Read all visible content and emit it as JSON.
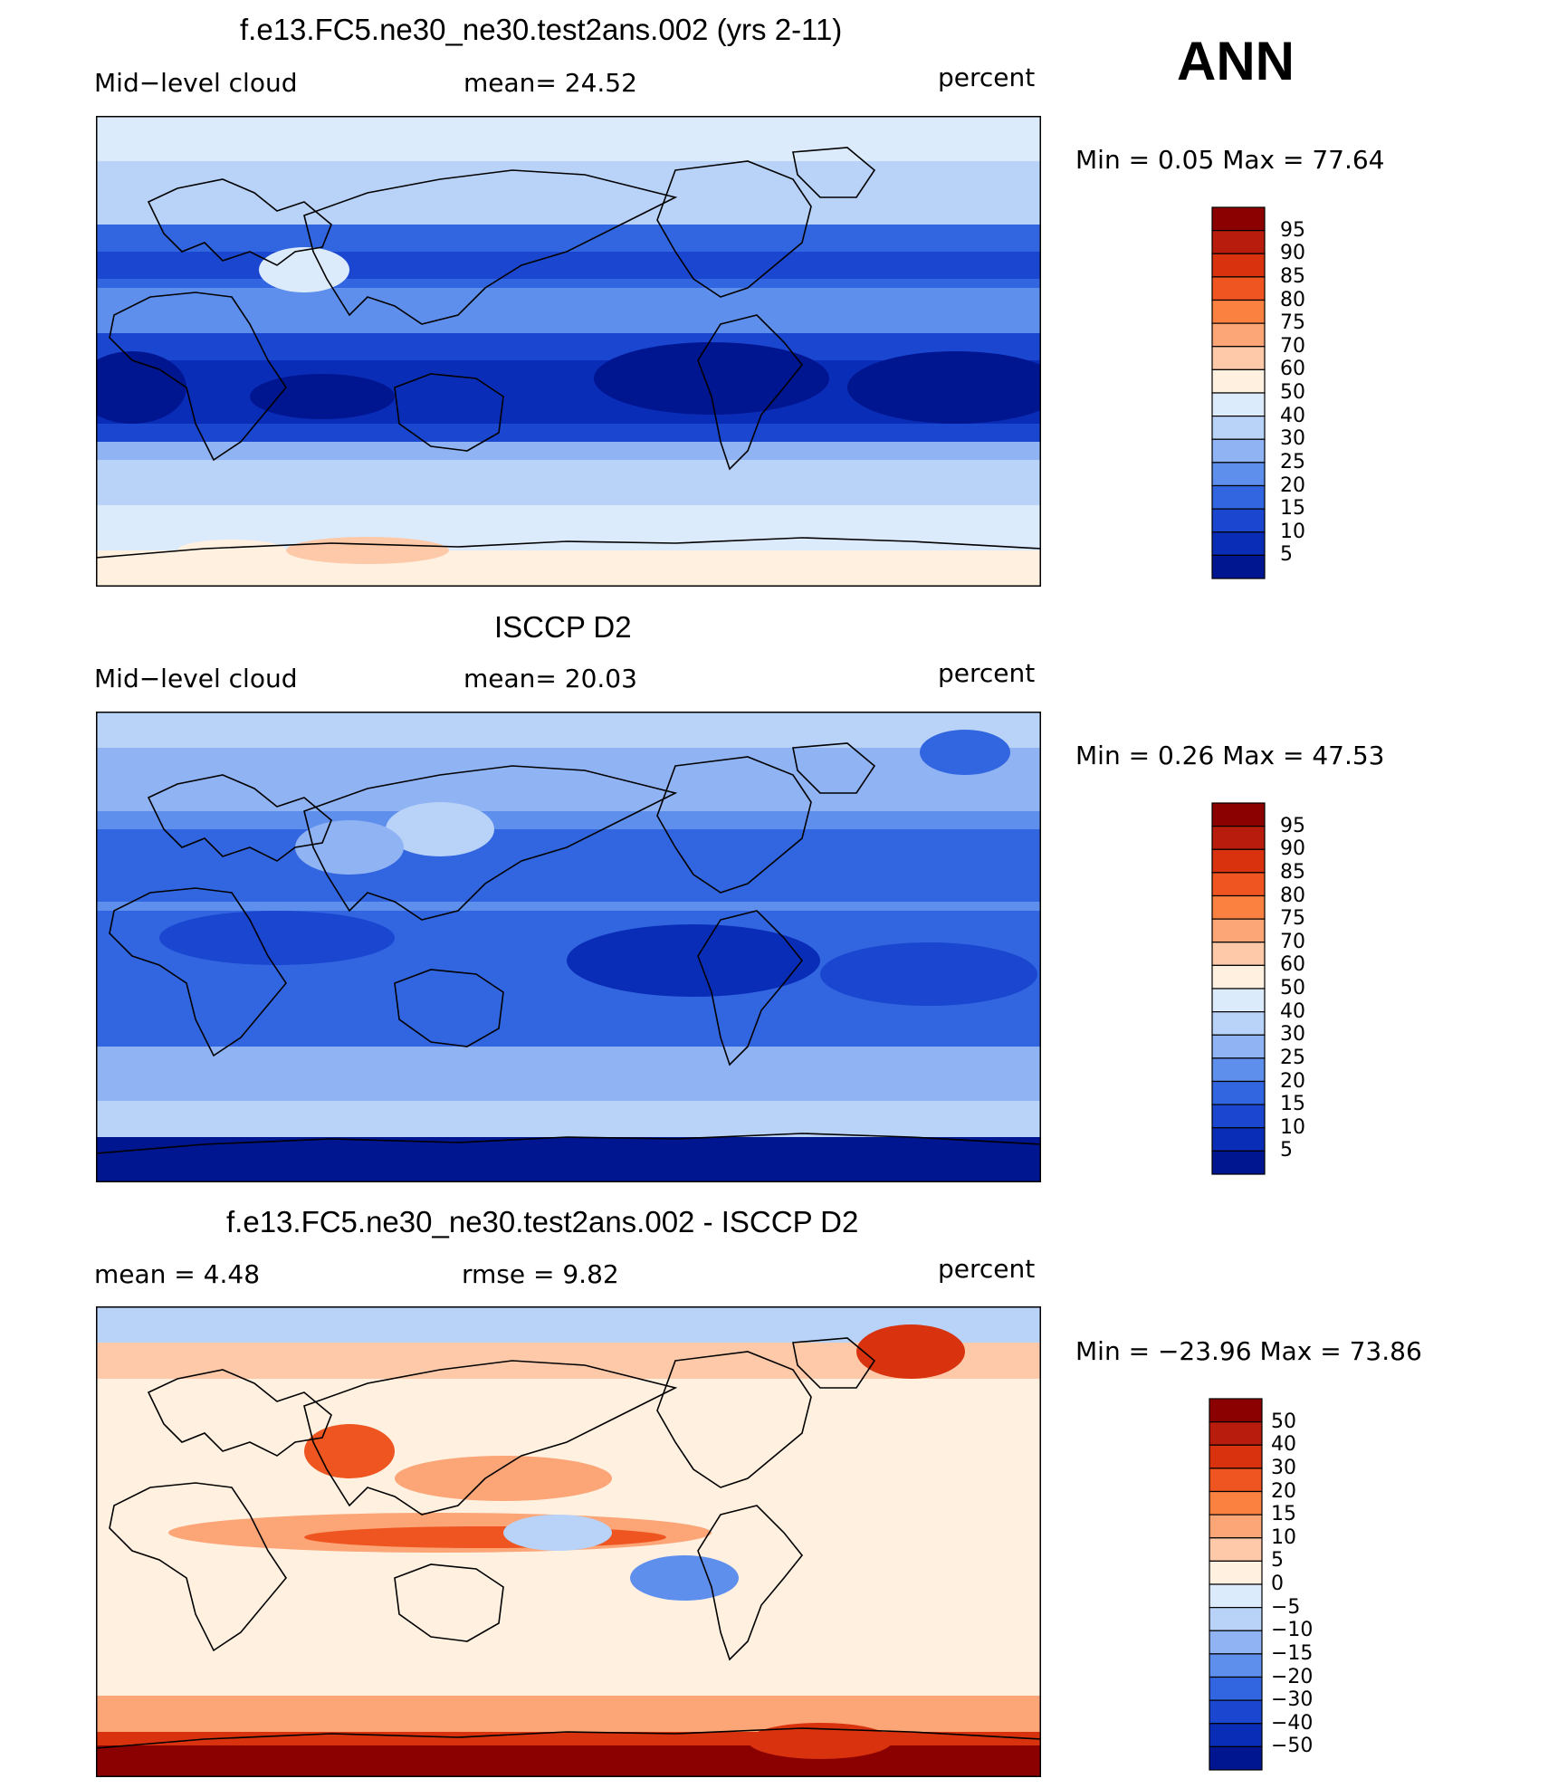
{
  "season": "ANN",
  "panels": [
    {
      "id": "model",
      "title": "f.e13.FC5.ne30_ne30.test2ans.002 (yrs 2-11)",
      "left_label": "Mid−level cloud",
      "mid_label": "mean=   24.52",
      "units": "percent",
      "minmax": "Min =    0.05 Max =   77.64",
      "kind": "abs"
    },
    {
      "id": "obs",
      "title": "ISCCP D2",
      "left_label": "Mid−level cloud",
      "mid_label": "mean=   20.03",
      "units": "percent",
      "minmax": "Min =    0.26 Max =   47.53",
      "kind": "obs"
    },
    {
      "id": "diff",
      "title": "f.e13.FC5.ne30_ne30.test2ans.002 - ISCCP D2",
      "left_label": "mean =    4.48",
      "mid_label": "rmse =    9.82",
      "units": "percent",
      "minmax": "Min = −23.96 Max =   73.86",
      "kind": "diff"
    }
  ],
  "colorbars": {
    "abs": {
      "labels": [
        "95",
        "90",
        "85",
        "80",
        "75",
        "70",
        "60",
        "50",
        "40",
        "30",
        "25",
        "20",
        "15",
        "10",
        "5"
      ],
      "colors": [
        "#8b0000",
        "#b71c0c",
        "#d8320e",
        "#ee5520",
        "#fb8140",
        "#fca577",
        "#fdc9a8",
        "#fff0e0",
        "#dcebfb",
        "#b8d2f8",
        "#8fb3f3",
        "#5f8fec",
        "#3266e0",
        "#1a46d0",
        "#0a2db8",
        "#001590"
      ]
    },
    "diff": {
      "labels": [
        "50",
        "40",
        "30",
        "20",
        "15",
        "10",
        "5",
        "0",
        "−5",
        "−10",
        "−15",
        "−20",
        "−30",
        "−40",
        "−50"
      ],
      "colors": [
        "#8b0000",
        "#b71c0c",
        "#d8320e",
        "#ee5520",
        "#fb8140",
        "#fca577",
        "#fdc9a8",
        "#fff0e0",
        "#dcebfb",
        "#b8d2f8",
        "#8fb3f3",
        "#5f8fec",
        "#3266e0",
        "#1a46d0",
        "#0a2db8",
        "#001590"
      ]
    }
  }
}
